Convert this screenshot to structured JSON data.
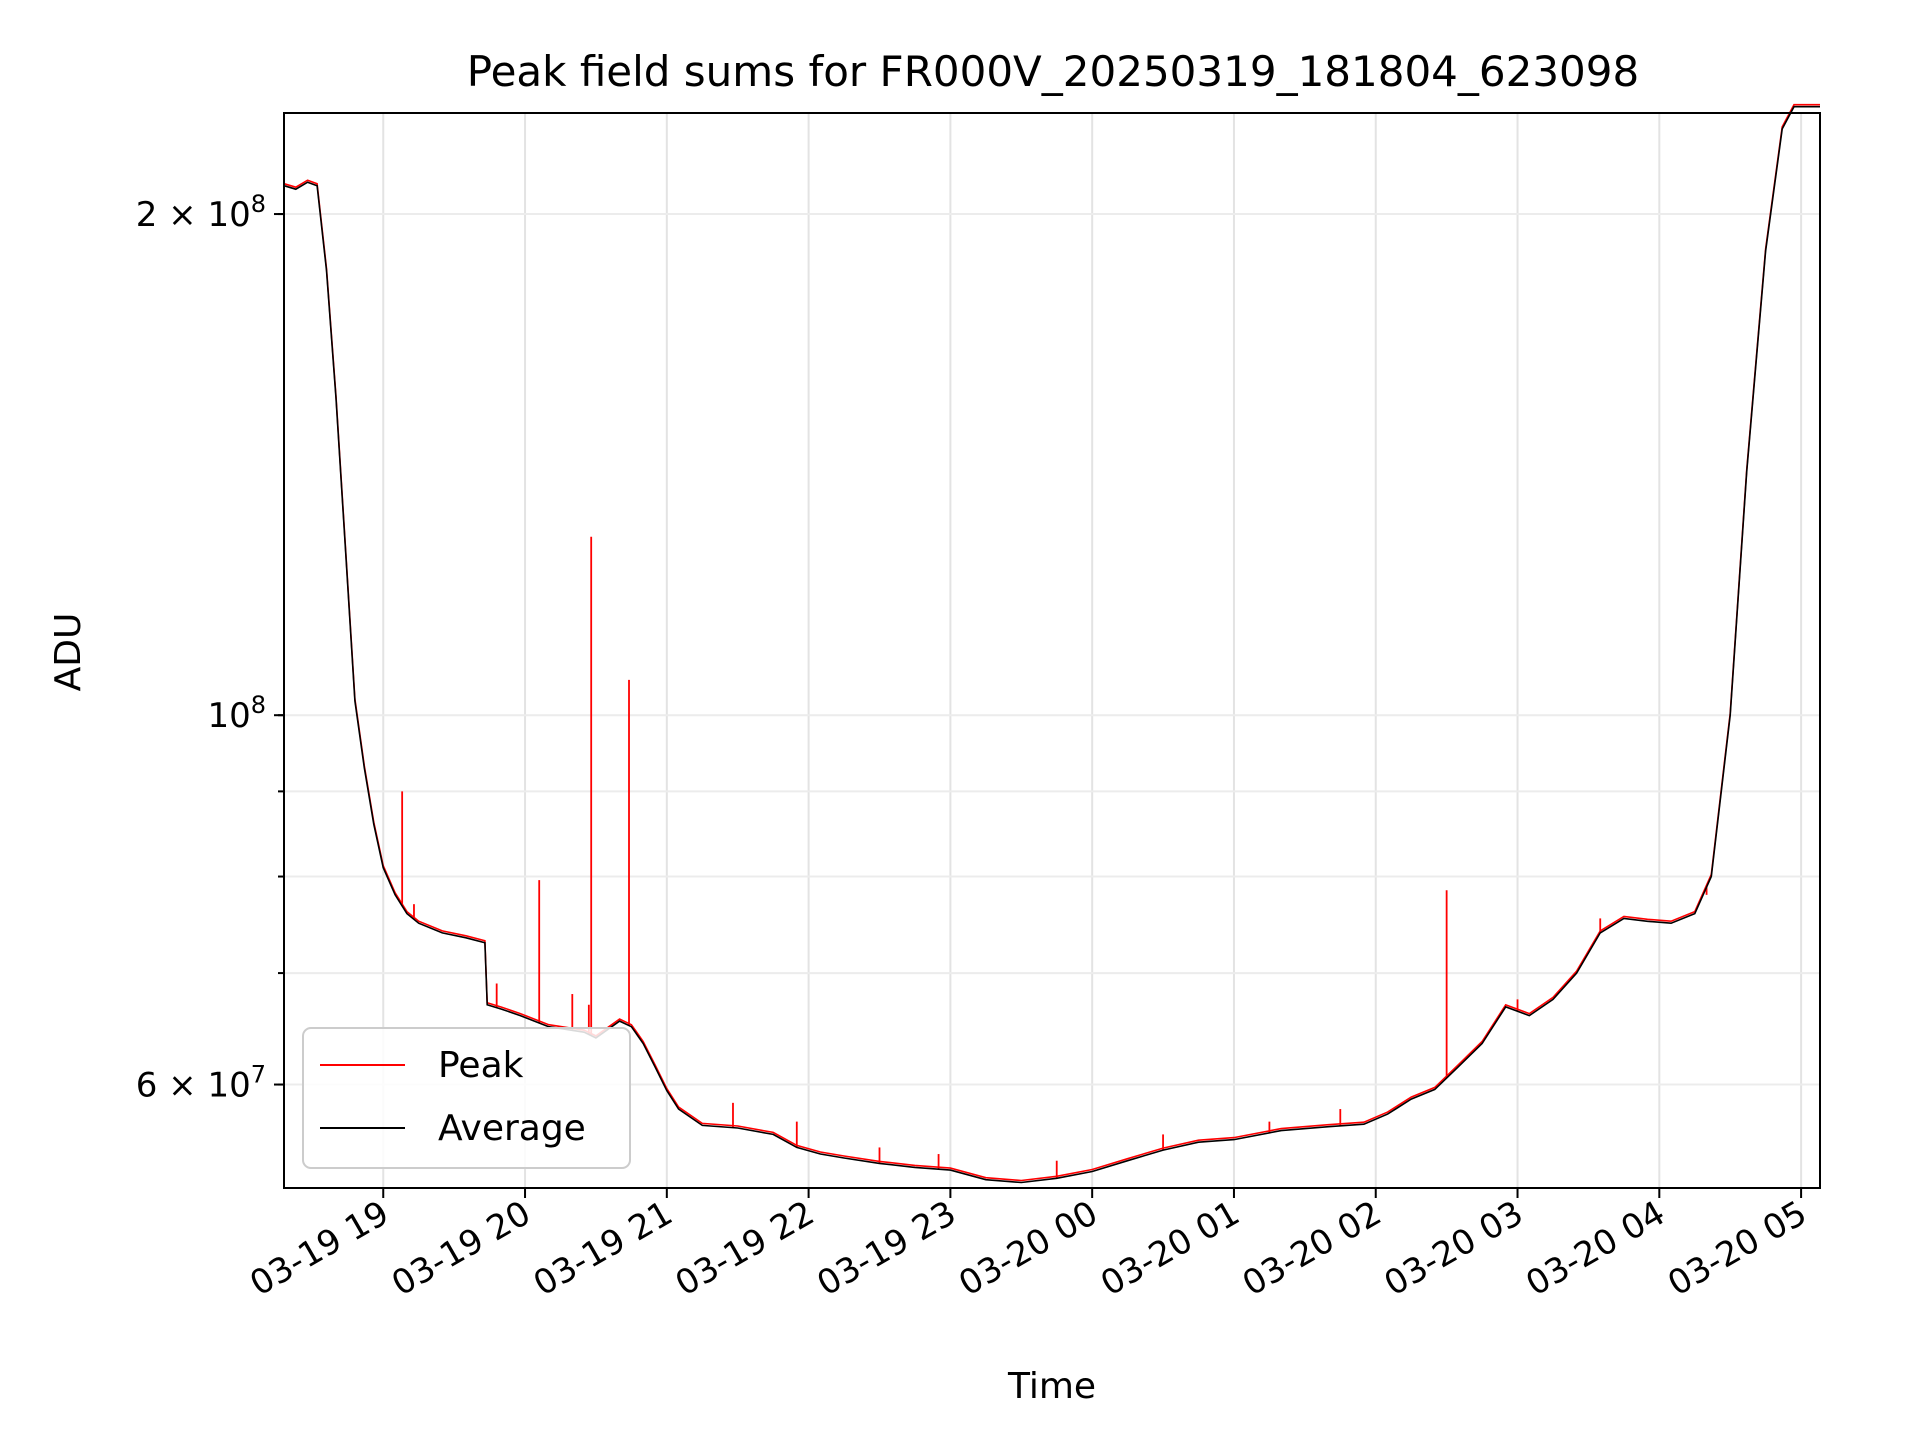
{
  "chart_data": {
    "type": "line",
    "title": "Peak field sums for FR000V_20250319_181804_623098",
    "xlabel": "Time",
    "ylabel": "ADU",
    "yscale": "log",
    "ylim": [
      52000000,
      230000000
    ],
    "xlim": [
      "03-19 18:18",
      "03-20 05:08"
    ],
    "grid": true,
    "legend_position": "lower-left",
    "x_ticks": [
      "03-19 19",
      "03-19 20",
      "03-19 21",
      "03-19 22",
      "03-19 23",
      "03-20 00",
      "03-20 01",
      "03-20 02",
      "03-20 03",
      "03-20 04",
      "03-20 05"
    ],
    "y_ticks": [
      {
        "value": 200000000,
        "mantissa": "2",
        "exp": "8"
      },
      {
        "value": 100000000,
        "mantissa": "",
        "exp": "8"
      },
      {
        "value": 60000000,
        "mantissa": "6",
        "exp": "7"
      }
    ],
    "series": [
      {
        "name": "Average",
        "color": "#000000"
      },
      {
        "name": "Peak",
        "color": "#ff0000"
      }
    ],
    "average_points": [
      [
        "03-19 18:18",
        208000000
      ],
      [
        "03-19 18:23",
        207000000
      ],
      [
        "03-19 18:28",
        209000000
      ],
      [
        "03-19 18:32",
        208000000
      ],
      [
        "03-19 18:36",
        185000000
      ],
      [
        "03-19 18:40",
        155000000
      ],
      [
        "03-19 18:44",
        126000000
      ],
      [
        "03-19 18:48",
        102000000
      ],
      [
        "03-19 18:52",
        93000000
      ],
      [
        "03-19 18:56",
        86000000
      ],
      [
        "03-19 19:00",
        81000000
      ],
      [
        "03-19 19:05",
        78000000
      ],
      [
        "03-19 19:10",
        76000000
      ],
      [
        "03-19 19:15",
        75000000
      ],
      [
        "03-19 19:25",
        74000000
      ],
      [
        "03-19 19:35",
        73500000
      ],
      [
        "03-19 19:43",
        73000000
      ],
      [
        "03-19 19:44",
        67000000
      ],
      [
        "03-19 19:50",
        66600000
      ],
      [
        "03-19 19:58",
        66000000
      ],
      [
        "03-19 20:10",
        65000000
      ],
      [
        "03-19 20:25",
        64500000
      ],
      [
        "03-19 20:30",
        64000000
      ],
      [
        "03-19 20:40",
        65500000
      ],
      [
        "03-19 20:45",
        65000000
      ],
      [
        "03-19 20:50",
        63500000
      ],
      [
        "03-19 20:55",
        61500000
      ],
      [
        "03-19 21:00",
        59500000
      ],
      [
        "03-19 21:05",
        58000000
      ],
      [
        "03-19 21:15",
        56700000
      ],
      [
        "03-19 21:30",
        56500000
      ],
      [
        "03-19 21:45",
        56000000
      ],
      [
        "03-19 21:55",
        55000000
      ],
      [
        "03-19 22:05",
        54500000
      ],
      [
        "03-19 22:15",
        54200000
      ],
      [
        "03-19 22:30",
        53800000
      ],
      [
        "03-19 22:45",
        53500000
      ],
      [
        "03-19 23:00",
        53300000
      ],
      [
        "03-19 23:15",
        52600000
      ],
      [
        "03-19 23:30",
        52400000
      ],
      [
        "03-19 23:45",
        52700000
      ],
      [
        "03-20 00:00",
        53200000
      ],
      [
        "03-20 00:15",
        54000000
      ],
      [
        "03-20 00:30",
        54800000
      ],
      [
        "03-20 00:45",
        55400000
      ],
      [
        "03-20 01:00",
        55600000
      ],
      [
        "03-20 01:20",
        56300000
      ],
      [
        "03-20 01:40",
        56600000
      ],
      [
        "03-20 01:55",
        56800000
      ],
      [
        "03-20 02:05",
        57600000
      ],
      [
        "03-20 02:15",
        58800000
      ],
      [
        "03-20 02:25",
        59600000
      ],
      [
        "03-20 02:35",
        61500000
      ],
      [
        "03-20 02:45",
        63500000
      ],
      [
        "03-20 02:55",
        66800000
      ],
      [
        "03-20 03:05",
        66000000
      ],
      [
        "03-20 03:15",
        67500000
      ],
      [
        "03-20 03:25",
        70000000
      ],
      [
        "03-20 03:35",
        74000000
      ],
      [
        "03-20 03:45",
        75500000
      ],
      [
        "03-20 03:55",
        75200000
      ],
      [
        "03-20 04:05",
        75000000
      ],
      [
        "03-20 04:15",
        76000000
      ],
      [
        "03-20 04:22",
        80000000
      ],
      [
        "03-20 04:30",
        100000000
      ],
      [
        "03-20 04:37",
        140000000
      ],
      [
        "03-20 04:45",
        190000000
      ],
      [
        "03-20 04:52",
        225000000
      ],
      [
        "03-20 04:57",
        232000000
      ],
      [
        "03-20 05:08",
        232000000
      ]
    ],
    "peak_spikes": [
      [
        "03-19 19:08",
        90000000
      ],
      [
        "03-19 19:13",
        77000000
      ],
      [
        "03-19 19:48",
        69000000
      ],
      [
        "03-19 20:06",
        79600000
      ],
      [
        "03-19 20:20",
        68000000
      ],
      [
        "03-19 20:27",
        67000000
      ],
      [
        "03-19 20:28",
        128000000
      ],
      [
        "03-19 20:44",
        105000000
      ],
      [
        "03-19 21:28",
        58500000
      ],
      [
        "03-19 21:55",
        57000000
      ],
      [
        "03-19 22:30",
        55000000
      ],
      [
        "03-19 22:55",
        54500000
      ],
      [
        "03-19 23:45",
        54000000
      ],
      [
        "03-20 00:30",
        56000000
      ],
      [
        "03-20 01:15",
        57000000
      ],
      [
        "03-20 01:45",
        58000000
      ],
      [
        "03-20 02:30",
        78500000
      ],
      [
        "03-20 03:00",
        67500000
      ],
      [
        "03-20 03:35",
        75500000
      ],
      [
        "03-20 04:20",
        78000000
      ]
    ]
  }
}
